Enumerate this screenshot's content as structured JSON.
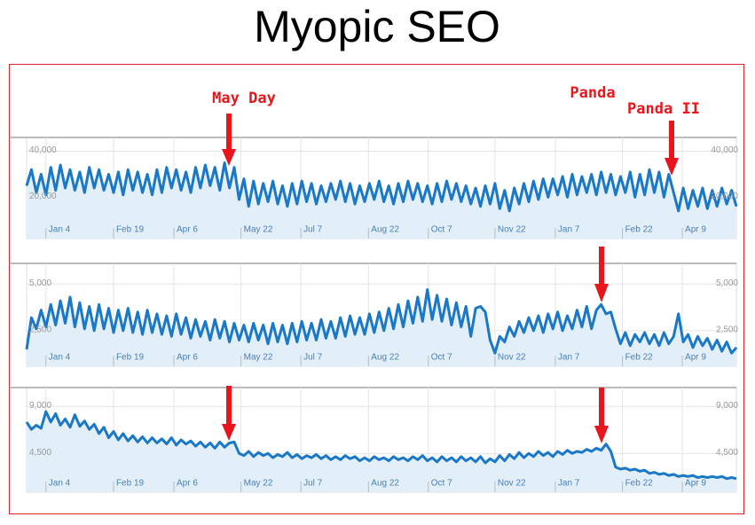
{
  "title": "Myopic SEO",
  "annotations": [
    "May Day",
    "Panda",
    "Panda II"
  ],
  "chart_data": [
    {
      "type": "line",
      "color": "#1a78c6",
      "fill": "#e2eff9",
      "grid": true,
      "xlim": [
        0,
        147
      ],
      "ylim": [
        2000,
        46000
      ],
      "yticks": [
        {
          "value": 40000,
          "label": "40,000"
        },
        {
          "value": 20000,
          "label": "20,000"
        }
      ],
      "xticks": [
        {
          "value": 4,
          "label": "Jan 4"
        },
        {
          "value": 18,
          "label": "Feb 19"
        },
        {
          "value": 30.5,
          "label": "Apr 6"
        },
        {
          "value": 44.4,
          "label": "May 22"
        },
        {
          "value": 56.8,
          "label": "Jul 7"
        },
        {
          "value": 70.8,
          "label": "Aug 22"
        },
        {
          "value": 83.2,
          "label": "Oct 7"
        },
        {
          "value": 97,
          "label": "Nov 22"
        },
        {
          "value": 109.5,
          "label": "Jan 7"
        },
        {
          "value": 123.4,
          "label": "Feb 22"
        },
        {
          "value": 135.8,
          "label": "Apr 9"
        }
      ],
      "values": [
        25000,
        32000,
        22000,
        30000,
        21000,
        33000,
        23000,
        34000,
        24000,
        32000,
        23000,
        31000,
        22000,
        33000,
        24000,
        32000,
        23000,
        30000,
        22000,
        31000,
        21000,
        32000,
        23000,
        31000,
        22000,
        30000,
        21000,
        32000,
        22000,
        33000,
        24000,
        32000,
        23000,
        31000,
        22000,
        33000,
        24000,
        34000,
        25000,
        33000,
        23000,
        35000,
        24000,
        33000,
        19000,
        28000,
        16000,
        27000,
        17000,
        26000,
        18000,
        27000,
        17000,
        25000,
        16000,
        26000,
        17000,
        27000,
        18000,
        26000,
        17000,
        25000,
        18000,
        26000,
        19000,
        27000,
        18000,
        26000,
        17000,
        25000,
        18000,
        26000,
        19000,
        27000,
        18000,
        25000,
        17000,
        26000,
        18000,
        27000,
        19000,
        26000,
        18000,
        25000,
        17000,
        26000,
        18000,
        27000,
        19000,
        26000,
        18000,
        25000,
        17000,
        24000,
        16000,
        25000,
        17000,
        26000,
        15000,
        23000,
        14000,
        24000,
        17000,
        26000,
        18000,
        27000,
        19000,
        28000,
        20000,
        28000,
        21000,
        29000,
        20000,
        30000,
        21000,
        29000,
        22000,
        30000,
        21000,
        31000,
        22000,
        30000,
        21000,
        29000,
        22000,
        31000,
        20000,
        30000,
        21000,
        32000,
        22000,
        31000,
        20000,
        30000,
        22000,
        14000,
        24000,
        15000,
        23000,
        16000,
        24000,
        15000,
        23000,
        16000,
        24000,
        17000,
        23000,
        16000
      ]
    },
    {
      "type": "line",
      "color": "#1a78c6",
      "fill": "#e2eff9",
      "grid": true,
      "xlim": [
        0,
        147
      ],
      "ylim": [
        600,
        6100
      ],
      "yticks": [
        {
          "value": 5000,
          "label": "5,000"
        },
        {
          "value": 2500,
          "label": "2,500"
        }
      ],
      "xticks": [
        {
          "value": 4,
          "label": "Jan 4"
        },
        {
          "value": 18,
          "label": "Feb 19"
        },
        {
          "value": 30.5,
          "label": "Apr 6"
        },
        {
          "value": 44.4,
          "label": "May 22"
        },
        {
          "value": 56.8,
          "label": "Jul 7"
        },
        {
          "value": 70.8,
          "label": "Aug 22"
        },
        {
          "value": 83.2,
          "label": "Oct 7"
        },
        {
          "value": 97,
          "label": "Nov 22"
        },
        {
          "value": 109.5,
          "label": "Jan 7"
        },
        {
          "value": 123.4,
          "label": "Feb 22"
        },
        {
          "value": 135.8,
          "label": "Apr 9"
        }
      ],
      "values": [
        1500,
        3200,
        2600,
        3600,
        2700,
        3900,
        2800,
        4100,
        2900,
        4300,
        2700,
        4000,
        2600,
        3800,
        2500,
        3900,
        2600,
        3700,
        2400,
        3600,
        2500,
        3700,
        2400,
        3500,
        2300,
        3600,
        2400,
        3400,
        2300,
        3300,
        2200,
        3400,
        2300,
        3200,
        2100,
        3100,
        2200,
        3000,
        2000,
        3100,
        2100,
        3000,
        1900,
        2900,
        2000,
        2800,
        1900,
        2900,
        2000,
        2800,
        1800,
        2900,
        1900,
        2800,
        1800,
        2900,
        1900,
        3000,
        2000,
        2900,
        2000,
        3100,
        2100,
        3000,
        2100,
        3200,
        2200,
        3300,
        2300,
        3200,
        2300,
        3400,
        2400,
        3500,
        2500,
        3700,
        2600,
        3900,
        2700,
        4100,
        2900,
        4300,
        3000,
        4700,
        3100,
        4400,
        3000,
        4200,
        2800,
        4000,
        2700,
        3800,
        2200,
        3700,
        3800,
        3500,
        2000,
        1300,
        2200,
        1900,
        2700,
        2200,
        3000,
        2400,
        3200,
        2500,
        3300,
        2400,
        3400,
        2600,
        3500,
        2500,
        3300,
        2600,
        3600,
        2700,
        3800,
        2600,
        3600,
        3900,
        3400,
        3500,
        2600,
        1800,
        2400,
        1700,
        2300,
        1900,
        2400,
        1800,
        2300,
        1700,
        2400,
        1800,
        2200,
        3400,
        1900,
        2300,
        1600,
        2200,
        1700,
        2100,
        1500,
        2000,
        1400,
        1900,
        1300,
        1600
      ]
    },
    {
      "type": "line",
      "color": "#1a78c6",
      "fill": "#e2eff9",
      "grid": true,
      "xlim": [
        0,
        147
      ],
      "ylim": [
        800,
        10800
      ],
      "yticks": [
        {
          "value": 9000,
          "label": "9,000"
        },
        {
          "value": 4500,
          "label": "4,500"
        }
      ],
      "xticks": [
        {
          "value": 4,
          "label": "Jan 4"
        },
        {
          "value": 18,
          "label": "Feb 19"
        },
        {
          "value": 30.5,
          "label": "Apr 6"
        },
        {
          "value": 44.4,
          "label": "May 22"
        },
        {
          "value": 56.8,
          "label": "Jul 7"
        },
        {
          "value": 70.8,
          "label": "Aug 22"
        },
        {
          "value": 83.2,
          "label": "Oct 7"
        },
        {
          "value": 97,
          "label": "Nov 22"
        },
        {
          "value": 109.5,
          "label": "Jan 7"
        },
        {
          "value": 123.4,
          "label": "Feb 22"
        },
        {
          "value": 135.8,
          "label": "Apr 9"
        }
      ],
      "values": [
        7500,
        6800,
        7200,
        6900,
        8500,
        7500,
        8300,
        7200,
        7800,
        7000,
        8200,
        7100,
        7600,
        6800,
        7300,
        6400,
        7000,
        6000,
        6600,
        5800,
        6400,
        5700,
        6200,
        5600,
        6100,
        5500,
        6000,
        5500,
        5900,
        5400,
        6000,
        5300,
        5800,
        5400,
        5700,
        5200,
        5600,
        5100,
        5500,
        5000,
        5600,
        5100,
        5500,
        5600,
        4500,
        4300,
        4700,
        4200,
        4600,
        4300,
        4500,
        4100,
        4400,
        4200,
        4600,
        4100,
        4400,
        4000,
        4300,
        4100,
        4400,
        4000,
        4300,
        3900,
        4200,
        3900,
        4300,
        4000,
        4200,
        3800,
        4100,
        3800,
        4200,
        3900,
        4100,
        3800,
        4200,
        3900,
        4100,
        3800,
        4200,
        3900,
        4300,
        3800,
        4100,
        3700,
        4200,
        3800,
        4100,
        3700,
        4200,
        3800,
        4100,
        3700,
        4200,
        3600,
        4000,
        3700,
        4300,
        3800,
        4400,
        4000,
        4600,
        4100,
        4500,
        4200,
        4700,
        4300,
        4600,
        4200,
        4700,
        4400,
        4800,
        4500,
        4700,
        4600,
        4900,
        4700,
        5000,
        4800,
        5400,
        4700,
        3200,
        3000,
        3100,
        2900,
        3000,
        2800,
        2900,
        2600,
        2700,
        2500,
        2600,
        2400,
        2500,
        2300,
        2400,
        2300,
        2400,
        2200,
        2300,
        2200,
        2300,
        2200,
        2300,
        2100,
        2200,
        2100
      ]
    }
  ]
}
